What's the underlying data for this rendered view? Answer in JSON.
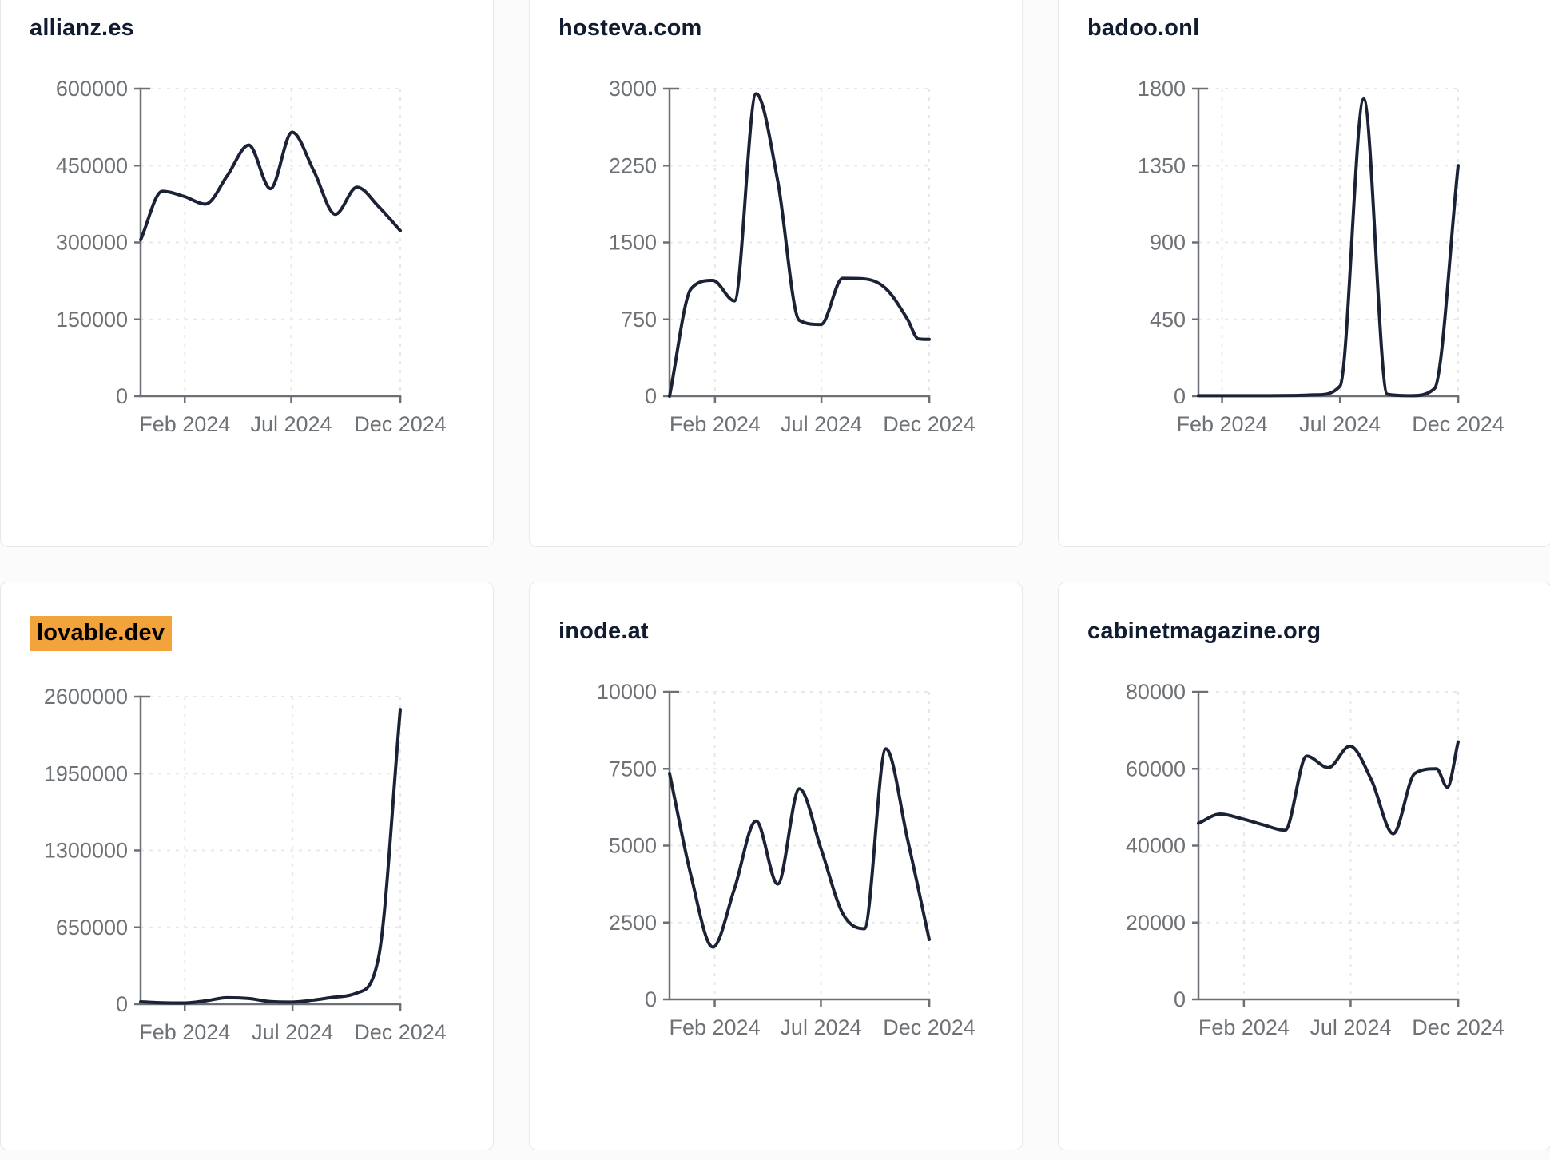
{
  "style": {
    "page_bg": "#fbfbfc",
    "card_bg": "#ffffff",
    "card_border": "#e7e8ec",
    "title_color": "#111c30",
    "line_color": "#1b2235",
    "axis_color": "#6b7076",
    "tick_label_color": "#6e7276",
    "grid_color": "#e8e8eb",
    "highlight_bg": "#f2a33c",
    "highlight_text": "#000000"
  },
  "chart_data": [
    {
      "type": "line",
      "title": "allianz.es",
      "highlighted": false,
      "ylim": [
        0,
        600000
      ],
      "y_ticks": [
        0,
        150000,
        300000,
        450000,
        600000
      ],
      "x_ticks": [
        {
          "label": "Feb 2024",
          "t": 0.17
        },
        {
          "label": "Jul 2024",
          "t": 0.58
        },
        {
          "label": "Dec 2024",
          "t": 1.0
        }
      ],
      "grid": true,
      "legend": "none",
      "points": {
        "t": [
          0,
          0.0833,
          0.1667,
          0.25,
          0.3333,
          0.4167,
          0.5,
          0.5833,
          0.6667,
          0.75,
          0.8333,
          0.9167,
          1
        ],
        "v": [
          305000,
          400000,
          390000,
          375000,
          430000,
          490000,
          405000,
          515000,
          440000,
          355000,
          408000,
          370000,
          323000
        ]
      }
    },
    {
      "type": "line",
      "title": "hosteva.com",
      "highlighted": false,
      "ylim": [
        0,
        3000
      ],
      "y_ticks": [
        0,
        750,
        1500,
        2250,
        3000
      ],
      "x_ticks": [
        {
          "label": "Feb 2024",
          "t": 0.175
        },
        {
          "label": "Jul 2024",
          "t": 0.585
        },
        {
          "label": "Dec 2024",
          "t": 1.0
        }
      ],
      "grid": true,
      "legend": "none",
      "points": {
        "t": [
          0,
          0.0833,
          0.1667,
          0.25,
          0.3333,
          0.4167,
          0.5,
          0.5833,
          0.6667,
          0.75,
          0.8333,
          0.9167,
          0.9583,
          1
        ],
        "v": [
          0,
          1050,
          1130,
          930,
          2950,
          2100,
          740,
          700,
          1150,
          1145,
          1050,
          750,
          560,
          555
        ]
      }
    },
    {
      "type": "line",
      "title": "badoo.onl",
      "highlighted": false,
      "ylim": [
        0,
        1800
      ],
      "y_ticks": [
        0,
        450,
        900,
        1350,
        1800
      ],
      "x_ticks": [
        {
          "label": "Feb 2024",
          "t": 0.091
        },
        {
          "label": "Jul 2024",
          "t": 0.545
        },
        {
          "label": "Dec 2024",
          "t": 1.0
        }
      ],
      "grid": true,
      "legend": "none",
      "points": {
        "t": [
          0,
          0.0909,
          0.1818,
          0.2727,
          0.3636,
          0.4545,
          0.5455,
          0.6364,
          0.7273,
          0.8182,
          0.9091,
          1
        ],
        "v": [
          3,
          3,
          3,
          3,
          4,
          8,
          60,
          1740,
          12,
          3,
          45,
          1350
        ]
      }
    },
    {
      "type": "line",
      "title": "lovable.dev",
      "highlighted": true,
      "ylim": [
        0,
        2600000
      ],
      "y_ticks": [
        0,
        650000,
        1300000,
        1950000,
        2600000
      ],
      "x_ticks": [
        {
          "label": "Feb 2024",
          "t": 0.17
        },
        {
          "label": "Jul 2024",
          "t": 0.585
        },
        {
          "label": "Dec 2024",
          "t": 1.0
        }
      ],
      "grid": true,
      "legend": "none",
      "points": {
        "t": [
          0,
          0.0833,
          0.1667,
          0.25,
          0.3333,
          0.4167,
          0.5,
          0.5833,
          0.6667,
          0.75,
          0.8333,
          0.9167,
          1
        ],
        "v": [
          20000,
          12000,
          10000,
          28000,
          55000,
          48000,
          22000,
          18000,
          35000,
          60000,
          95000,
          400000,
          2490000
        ]
      }
    },
    {
      "type": "line",
      "title": "inode.at",
      "highlighted": false,
      "ylim": [
        0,
        10000
      ],
      "y_ticks": [
        0,
        2500,
        5000,
        7500,
        10000
      ],
      "x_ticks": [
        {
          "label": "Feb 2024",
          "t": 0.174
        },
        {
          "label": "Jul 2024",
          "t": 0.583
        },
        {
          "label": "Dec 2024",
          "t": 1.0
        }
      ],
      "grid": true,
      "legend": "none",
      "points": {
        "t": [
          0,
          0.0833,
          0.1667,
          0.25,
          0.3333,
          0.4167,
          0.5,
          0.5833,
          0.6667,
          0.75,
          0.8333,
          0.9167,
          1
        ],
        "v": [
          7350,
          4000,
          1700,
          3600,
          5800,
          3750,
          6850,
          4900,
          2800,
          2300,
          8150,
          5200,
          1950
        ]
      }
    },
    {
      "type": "line",
      "title": "cabinetmagazine.org",
      "highlighted": false,
      "ylim": [
        0,
        80000
      ],
      "y_ticks": [
        0,
        20000,
        40000,
        60000,
        80000
      ],
      "x_ticks": [
        {
          "label": "Feb 2024",
          "t": 0.175
        },
        {
          "label": "Jul 2024",
          "t": 0.586
        },
        {
          "label": "Dec 2024",
          "t": 1.0
        }
      ],
      "grid": true,
      "legend": "none",
      "points": {
        "t": [
          0,
          0.0833,
          0.1667,
          0.25,
          0.3333,
          0.4167,
          0.5,
          0.5833,
          0.6667,
          0.75,
          0.8333,
          0.9167,
          0.9583,
          1
        ],
        "v": [
          45800,
          48200,
          47000,
          45400,
          44000,
          63300,
          60300,
          65900,
          57000,
          43100,
          58800,
          60000,
          55200,
          67000
        ]
      }
    }
  ]
}
